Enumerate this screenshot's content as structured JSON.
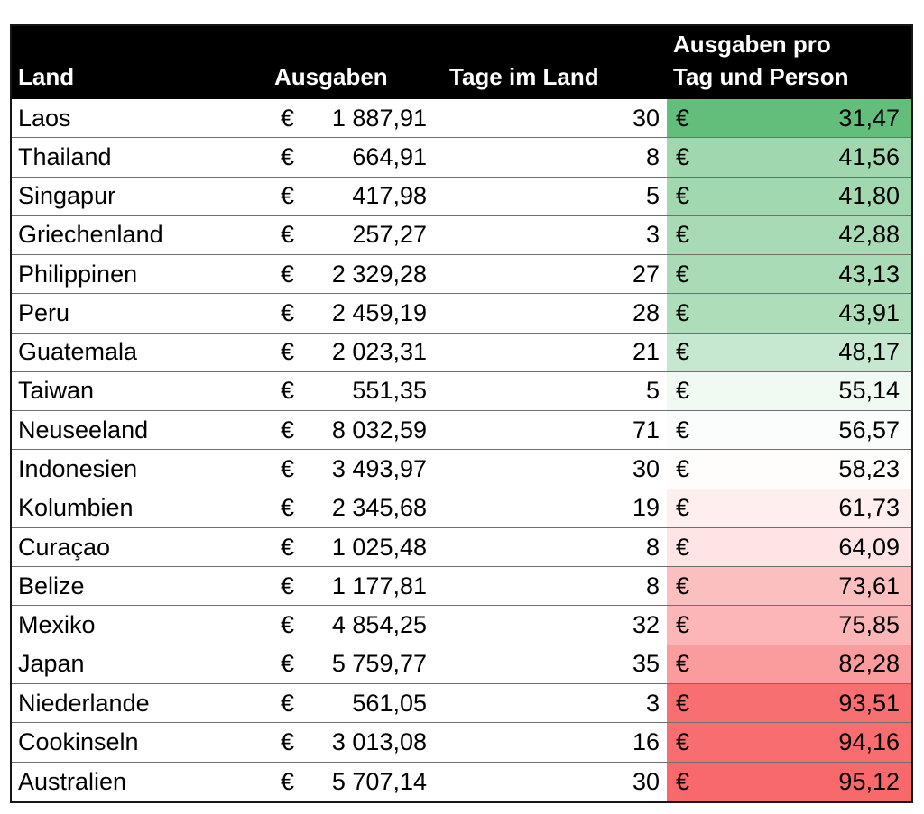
{
  "table": {
    "currency_symbol": "€",
    "columns": {
      "land": {
        "label": "Land"
      },
      "ausgaben": {
        "label": "Ausgaben"
      },
      "tage": {
        "label": "Tage im Land"
      },
      "pro_tag": {
        "label_line1": "Ausgaben pro",
        "label_line2": "Tag und Person"
      }
    },
    "rows": [
      {
        "land": "Laos",
        "ausgaben": "1 887,91",
        "tage": "30",
        "pro_tag": "31,47",
        "color": "#63BE7B"
      },
      {
        "land": "Thailand",
        "ausgaben": "664,91",
        "tage": "8",
        "pro_tag": "41,56",
        "color": "#A0D7AE"
      },
      {
        "land": "Singapur",
        "ausgaben": "417,98",
        "tage": "5",
        "pro_tag": "41,80",
        "color": "#A1D8B0"
      },
      {
        "land": "Griechenland",
        "ausgaben": "257,27",
        "tage": "3",
        "pro_tag": "42,88",
        "color": "#A8DBB5"
      },
      {
        "land": "Philippinen",
        "ausgaben": "2 329,28",
        "tage": "27",
        "pro_tag": "43,13",
        "color": "#A9DBB6"
      },
      {
        "land": "Peru",
        "ausgaben": "2 459,19",
        "tage": "28",
        "pro_tag": "43,91",
        "color": "#AEDDBA"
      },
      {
        "land": "Guatemala",
        "ausgaben": "2 023,31",
        "tage": "21",
        "pro_tag": "48,17",
        "color": "#C7E8D0"
      },
      {
        "land": "Taiwan",
        "ausgaben": "551,35",
        "tage": "5",
        "pro_tag": "55,14",
        "color": "#F1F9F3"
      },
      {
        "land": "Neuseeland",
        "ausgaben": "8 032,59",
        "tage": "71",
        "pro_tag": "56,57",
        "color": "#FAFDFB"
      },
      {
        "land": "Indonesien",
        "ausgaben": "3 493,97",
        "tage": "30",
        "pro_tag": "58,23",
        "color": "#FFFCFC"
      },
      {
        "land": "Kolumbien",
        "ausgaben": "2 345,68",
        "tage": "19",
        "pro_tag": "61,73",
        "color": "#FEEEEE"
      },
      {
        "land": "Curaçao",
        "ausgaben": "1 025,48",
        "tage": "8",
        "pro_tag": "64,09",
        "color": "#FEE4E5"
      },
      {
        "land": "Belize",
        "ausgaben": "1 177,81",
        "tage": "8",
        "pro_tag": "73,61",
        "color": "#FCBFBF"
      },
      {
        "land": "Mexiko",
        "ausgaben": "4 854,25",
        "tage": "32",
        "pro_tag": "75,85",
        "color": "#FCB6B7"
      },
      {
        "land": "Japan",
        "ausgaben": "5 759,77",
        "tage": "35",
        "pro_tag": "82,28",
        "color": "#FA9C9D"
      },
      {
        "land": "Niederlande",
        "ausgaben": "561,05",
        "tage": "3",
        "pro_tag": "93,51",
        "color": "#F86F71"
      },
      {
        "land": "Cookinseln",
        "ausgaben": "3 013,08",
        "tage": "16",
        "pro_tag": "94,16",
        "color": "#F86D6F"
      },
      {
        "land": "Australien",
        "ausgaben": "5 707,14",
        "tage": "30",
        "pro_tag": "95,12",
        "color": "#F8696B"
      }
    ]
  },
  "colors": {
    "header_bg": "#000000",
    "header_text": "#FFFFFF",
    "grid_line": "#6F6F6F",
    "outer_border": "#161616",
    "scale_min_green": "#63BE7B",
    "scale_mid_white": "#FFFFFF",
    "scale_max_red": "#F8696B"
  }
}
